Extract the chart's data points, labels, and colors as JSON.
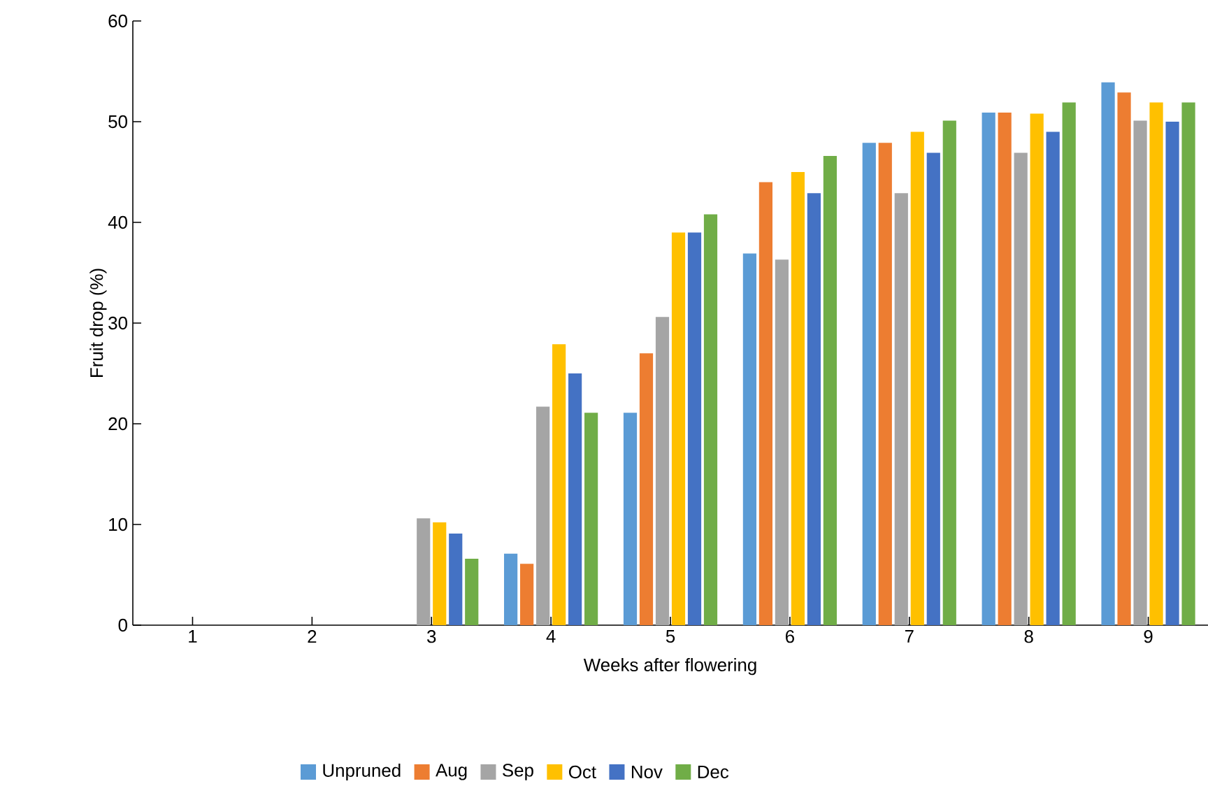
{
  "chart_data": {
    "type": "bar",
    "xlabel": "Weeks after flowering",
    "ylabel": "Fruit drop (%)",
    "categories": [
      "1",
      "2",
      "3",
      "4",
      "5",
      "6",
      "7",
      "8",
      "9"
    ],
    "ylim": [
      0,
      60
    ],
    "yticks": [
      0,
      10,
      20,
      30,
      40,
      50,
      60
    ],
    "grid": false,
    "legend": "bottom",
    "series": [
      {
        "name": "Unpruned",
        "color": "#5b9bd5",
        "values": [
          0,
          0,
          0,
          7.1,
          21.1,
          36.9,
          47.9,
          50.9,
          53.9
        ]
      },
      {
        "name": "Aug",
        "color": "#ed7d31",
        "values": [
          0,
          0,
          0,
          6.1,
          27.0,
          44.0,
          47.9,
          50.9,
          52.9
        ]
      },
      {
        "name": "Sep",
        "color": "#a5a5a5",
        "values": [
          0,
          0,
          10.6,
          21.7,
          30.6,
          36.3,
          42.9,
          46.9,
          50.1
        ]
      },
      {
        "name": "Oct",
        "color": "#ffc000",
        "values": [
          0,
          0,
          10.2,
          27.9,
          39.0,
          45.0,
          49.0,
          50.8,
          51.9
        ]
      },
      {
        "name": "Nov",
        "color": "#4472c4",
        "values": [
          0,
          0,
          9.1,
          25.0,
          39.0,
          42.9,
          46.9,
          49.0,
          50.0
        ]
      },
      {
        "name": "Dec",
        "color": "#70ad47",
        "values": [
          0,
          0,
          6.6,
          21.1,
          40.8,
          46.6,
          50.1,
          51.9,
          51.9
        ]
      }
    ]
  }
}
